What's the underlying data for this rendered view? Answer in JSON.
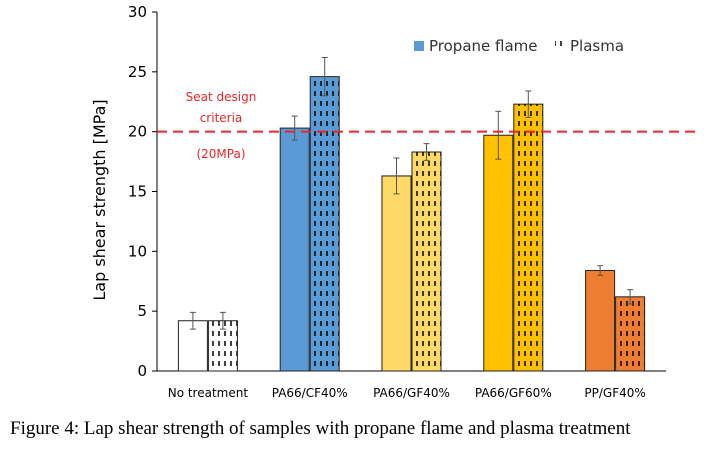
{
  "chart_data": {
    "type": "bar",
    "categories": [
      "No treatment",
      "PA66/CF40%",
      "PA66/GF40%",
      "PA66/GF60%",
      "PP/GF40%"
    ],
    "category_colors": [
      "#ffffff",
      "#5b9bd5",
      "#ffd966",
      "#ffc000",
      "#ed7d31"
    ],
    "series": [
      {
        "name": "Propane flame",
        "pattern": "solid",
        "values": [
          4.2,
          20.3,
          16.3,
          19.7,
          8.4
        ],
        "errors": [
          0.7,
          1.0,
          1.5,
          2.0,
          0.4
        ]
      },
      {
        "name": "Plasma",
        "pattern": "dashed",
        "values": [
          4.2,
          24.6,
          18.3,
          22.3,
          6.2
        ],
        "errors": [
          0.7,
          1.6,
          0.7,
          1.1,
          0.6
        ]
      }
    ],
    "title": "",
    "xlabel": "",
    "ylabel": "Lap shear strength [MPa]",
    "ylim": [
      0,
      30
    ],
    "yticks": [
      0,
      5,
      10,
      15,
      20,
      25,
      30
    ],
    "grid": false,
    "legend_position": "top-right",
    "reference_line": {
      "value": 20,
      "color": "#e8262a",
      "style": "dashed"
    },
    "annotation_lines": [
      "Seat design",
      "criteria",
      "(20MPa)"
    ]
  },
  "caption": "Figure 4: Lap shear strength of samples with propane flame and plasma treatment"
}
